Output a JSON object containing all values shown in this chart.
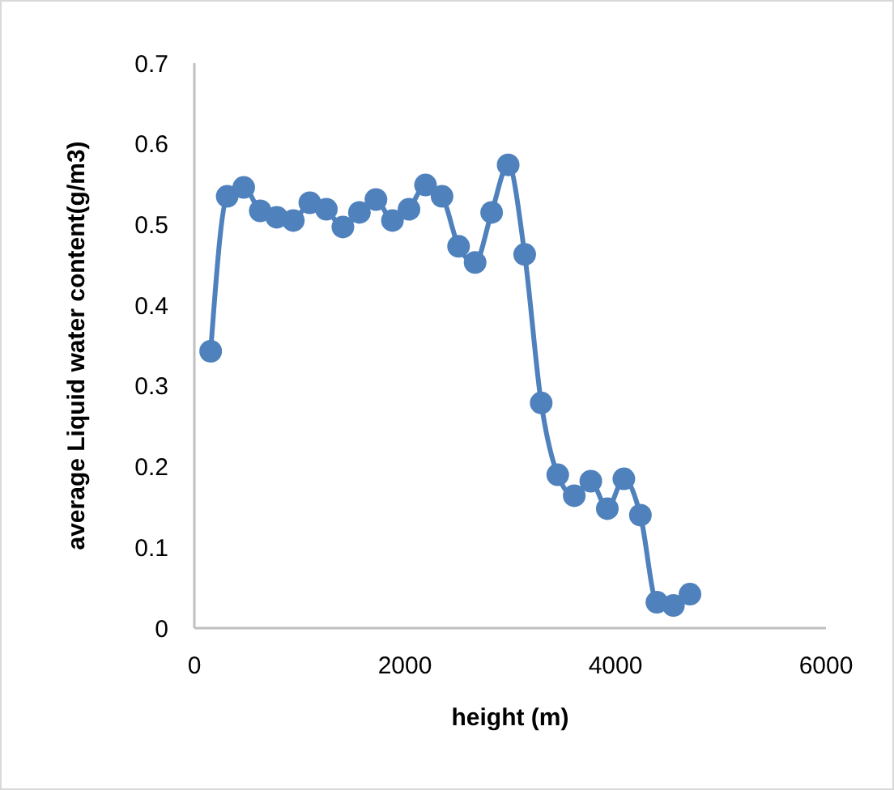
{
  "chart_data": {
    "type": "line",
    "xlabel": "height (m)",
    "ylabel": "average Liquid water content(g/m3)",
    "xlim": [
      0,
      6000
    ],
    "xticks": [
      0,
      2000,
      4000,
      6000
    ],
    "ylim": [
      0,
      0.7
    ],
    "yticks": [
      0,
      0.1,
      0.2,
      0.3,
      0.4,
      0.5,
      0.6,
      0.7
    ],
    "marker": "circle",
    "grid": false,
    "x": [
      155,
      312,
      469,
      626,
      783,
      940,
      1097,
      1254,
      1411,
      1568,
      1725,
      1882,
      2039,
      2196,
      2353,
      2510,
      2667,
      2824,
      2981,
      3138,
      3295,
      3452,
      3609,
      3766,
      3923,
      4080,
      4237,
      4394,
      4551,
      4708
    ],
    "series": [
      {
        "color": "#4f81bd",
        "values": [
          0.343,
          0.535,
          0.546,
          0.517,
          0.509,
          0.505,
          0.527,
          0.519,
          0.497,
          0.515,
          0.531,
          0.505,
          0.519,
          0.549,
          0.535,
          0.473,
          0.453,
          0.515,
          0.574,
          0.463,
          0.279,
          0.19,
          0.164,
          0.182,
          0.148,
          0.185,
          0.14,
          0.032,
          0.028,
          0.042
        ]
      }
    ]
  }
}
